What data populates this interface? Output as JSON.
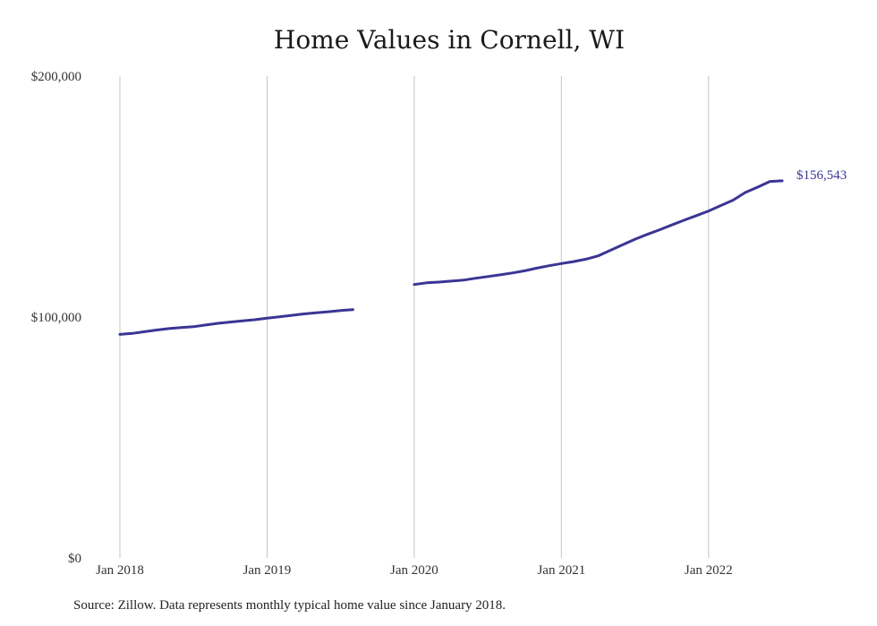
{
  "chart_data": {
    "type": "line",
    "title": "Home Values in Cornell, WI",
    "xlabel": "",
    "ylabel": "",
    "y_ticks": [
      {
        "value": 0,
        "label": "$0"
      },
      {
        "value": 100000,
        "label": "$100,000"
      },
      {
        "value": 200000,
        "label": "$200,000"
      }
    ],
    "x_ticks": [
      {
        "value": "2018-01",
        "label": "Jan 2018"
      },
      {
        "value": "2019-01",
        "label": "Jan 2019"
      },
      {
        "value": "2020-01",
        "label": "Jan 2020"
      },
      {
        "value": "2021-01",
        "label": "Jan 2021"
      },
      {
        "value": "2022-01",
        "label": "Jan 2022"
      }
    ],
    "ylim": [
      0,
      200000
    ],
    "xlim": [
      "2018-01",
      "2022-07"
    ],
    "grid": "vertical",
    "line_color": "#3a3594",
    "end_label": "$156,543",
    "segments": [
      {
        "x": [
          "2018-01",
          "2018-02",
          "2018-03",
          "2018-04",
          "2018-05",
          "2018-06",
          "2018-07",
          "2018-08",
          "2018-09",
          "2018-10",
          "2018-11",
          "2018-12",
          "2019-01",
          "2019-02",
          "2019-03",
          "2019-04",
          "2019-05",
          "2019-06",
          "2019-07",
          "2019-08"
        ],
        "y": [
          92800,
          93200,
          93900,
          94600,
          95200,
          95600,
          96000,
          96700,
          97400,
          97900,
          98400,
          98900,
          99500,
          100100,
          100700,
          101300,
          101800,
          102200,
          102700,
          103100
        ]
      },
      {
        "x": [
          "2020-01",
          "2020-02",
          "2020-03",
          "2020-04",
          "2020-05",
          "2020-06",
          "2020-07",
          "2020-08",
          "2020-09",
          "2020-10",
          "2020-11",
          "2020-12",
          "2021-01",
          "2021-02",
          "2021-03",
          "2021-04",
          "2021-05",
          "2021-06",
          "2021-07",
          "2021-08",
          "2021-09",
          "2021-10",
          "2021-11",
          "2021-12",
          "2022-01",
          "2022-02",
          "2022-03",
          "2022-04",
          "2022-05",
          "2022-06",
          "2022-07"
        ],
        "y": [
          113500,
          114200,
          114500,
          114900,
          115300,
          116100,
          116800,
          117500,
          118300,
          119200,
          120300,
          121300,
          122200,
          123000,
          124000,
          125400,
          127700,
          130000,
          132300,
          134300,
          136200,
          138200,
          140200,
          142100,
          144000,
          146300,
          148500,
          151700,
          153900,
          156300,
          156543
        ]
      }
    ]
  },
  "footer": {
    "source_text": "Source: Zillow. Data represents monthly typical home value since January 2018."
  }
}
